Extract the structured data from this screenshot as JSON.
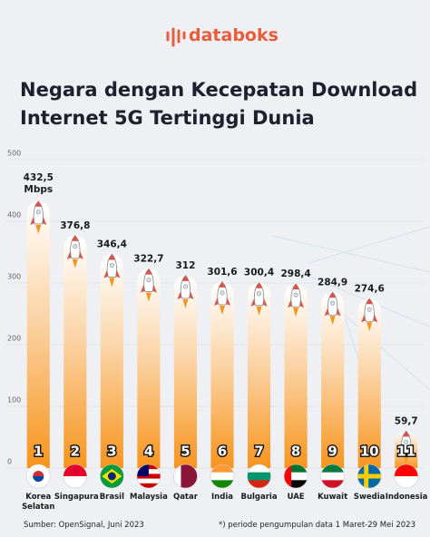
{
  "brand": "databoks",
  "chart_data": {
    "type": "bar",
    "title": "Negara dengan Kecepatan Download Internet 5G Tertinggi Dunia",
    "categories": [
      "Korea Selatan",
      "Singapura",
      "Brasil",
      "Malaysia",
      "Qatar",
      "India",
      "Bulgaria",
      "UAE",
      "Kuwait",
      "Swedia",
      "Indonesia"
    ],
    "ranks": [
      "1",
      "2",
      "3",
      "4",
      "5",
      "6",
      "7",
      "8",
      "9",
      "10",
      "11"
    ],
    "values": [
      432.5,
      376.8,
      346.4,
      322.7,
      312,
      301.6,
      300.4,
      298.4,
      284.9,
      274.6,
      59.7
    ],
    "value_labels": [
      "432,5",
      "376,8",
      "346,4",
      "322,7",
      "312",
      "301,6",
      "300,4",
      "298,4",
      "284,9",
      "274,6",
      "59,7"
    ],
    "unit": "Mbps",
    "color": "#f7941d",
    "ylim": [
      0,
      500
    ],
    "yticks": [
      0,
      100,
      200,
      300,
      400,
      500
    ],
    "grid": true,
    "source": "Sumber: OpenSignal, Juni 2023",
    "note": "*) periode pengumpulan data 1 Maret-29 Mei 2023"
  }
}
